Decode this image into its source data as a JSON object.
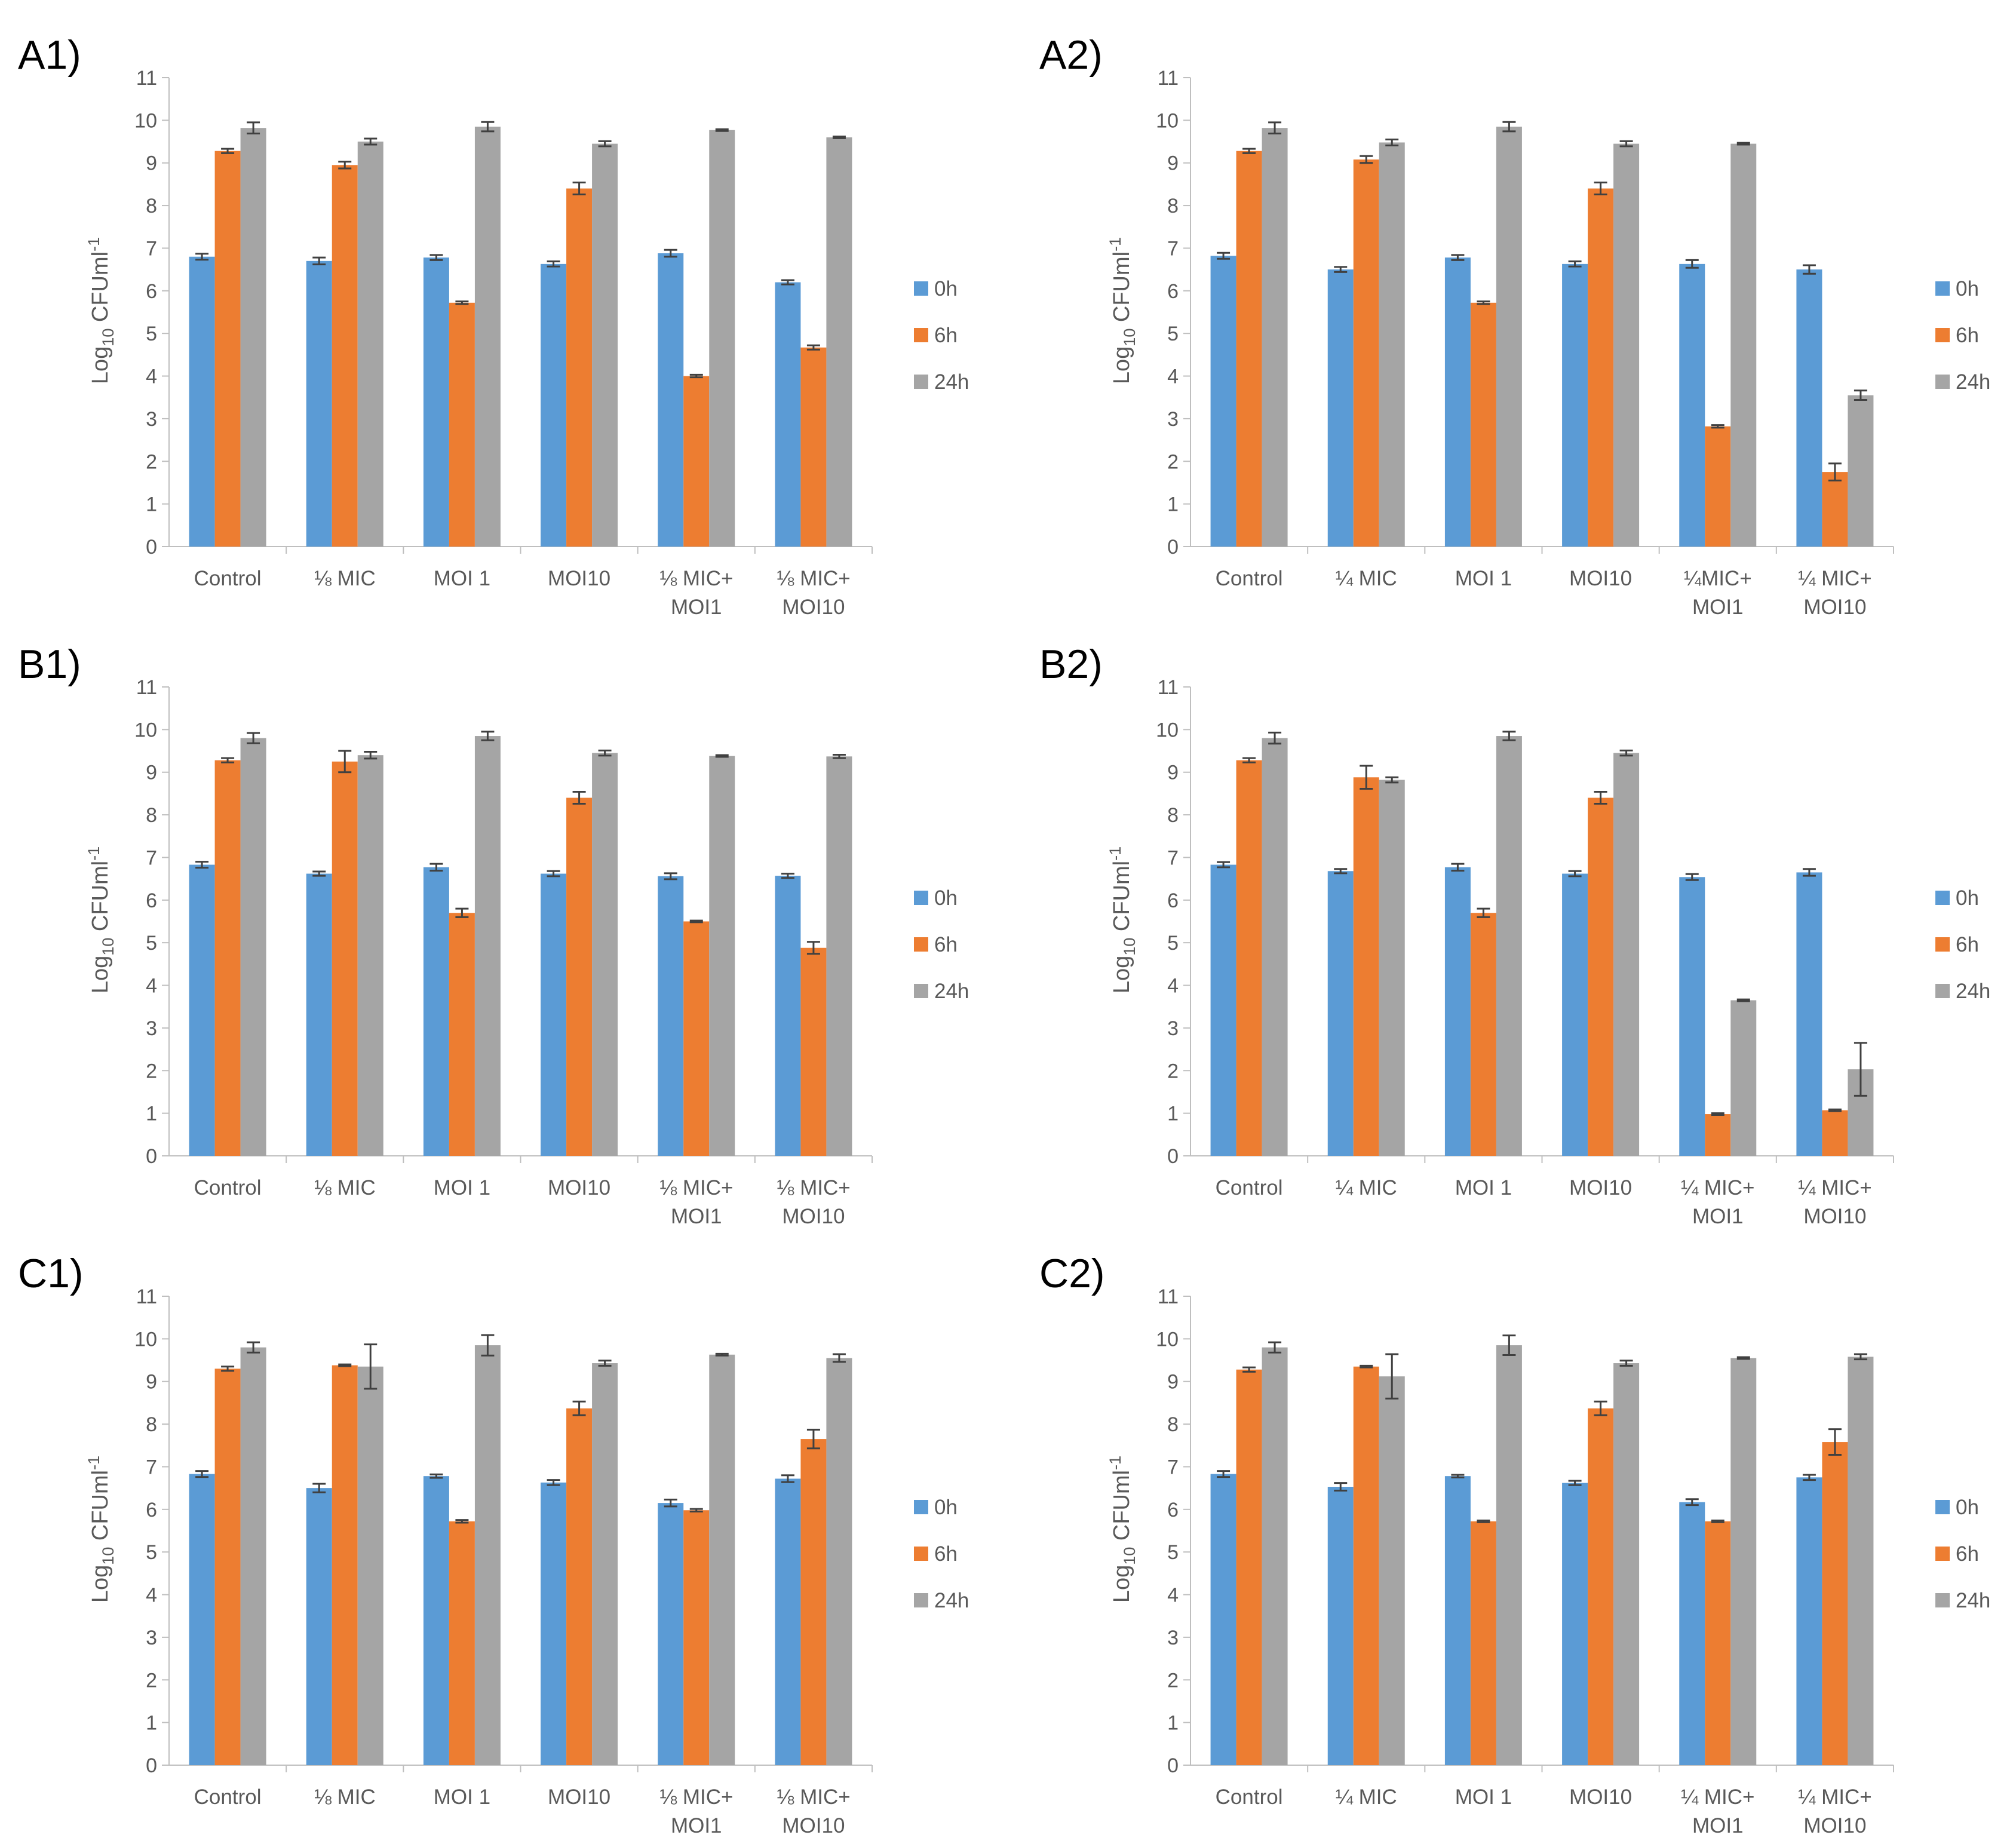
{
  "series_meta": [
    {
      "name": "0h",
      "color": "#5b9bd5"
    },
    {
      "name": "6h",
      "color": "#ed7d31"
    },
    {
      "name": "24h",
      "color": "#a5a5a5"
    }
  ],
  "chart_data": [
    {
      "panel": "A1)",
      "type": "bar",
      "ylabel": "Log10 CFUml-1",
      "ylim": [
        0,
        11
      ],
      "yticks": [
        0,
        1,
        2,
        3,
        4,
        5,
        6,
        7,
        8,
        9,
        10,
        11
      ],
      "legend": "right",
      "categories": [
        [
          "Control"
        ],
        [
          "⅛ MIC"
        ],
        [
          "MOI 1"
        ],
        [
          "MOI10"
        ],
        [
          "⅛ MIC+",
          "MOI1"
        ],
        [
          "⅛ MIC+",
          "MOI10"
        ]
      ],
      "series": [
        {
          "name": "0h",
          "values": [
            6.8,
            6.7,
            6.78,
            6.63,
            6.88,
            6.2
          ],
          "errors": [
            0.07,
            0.08,
            0.06,
            0.06,
            0.08,
            0.05
          ]
        },
        {
          "name": "6h",
          "values": [
            9.28,
            8.95,
            5.72,
            8.4,
            4.0,
            4.67
          ],
          "errors": [
            0.05,
            0.08,
            0.03,
            0.14,
            0.03,
            0.05
          ]
        },
        {
          "name": "24h",
          "values": [
            9.82,
            9.5,
            9.85,
            9.45,
            9.77,
            9.6
          ],
          "errors": [
            0.13,
            0.07,
            0.11,
            0.06,
            0.02,
            0.02
          ]
        }
      ]
    },
    {
      "panel": "A2)",
      "type": "bar",
      "ylabel": "Log10 CFUml-1",
      "ylim": [
        0,
        11
      ],
      "yticks": [
        0,
        1,
        2,
        3,
        4,
        5,
        6,
        7,
        8,
        9,
        10,
        11
      ],
      "legend": "right",
      "categories": [
        [
          "Control"
        ],
        [
          "¼ MIC"
        ],
        [
          "MOI 1"
        ],
        [
          "MOI10"
        ],
        [
          "¼MIC+",
          "MOI1"
        ],
        [
          "¼ MIC+",
          "MOI10"
        ]
      ],
      "series": [
        {
          "name": "0h",
          "values": [
            6.82,
            6.5,
            6.78,
            6.63,
            6.63,
            6.5
          ],
          "errors": [
            0.07,
            0.06,
            0.06,
            0.06,
            0.09,
            0.1
          ]
        },
        {
          "name": "6h",
          "values": [
            9.28,
            9.08,
            5.72,
            8.4,
            2.82,
            1.75
          ],
          "errors": [
            0.05,
            0.08,
            0.03,
            0.14,
            0.03,
            0.2
          ]
        },
        {
          "name": "24h",
          "values": [
            9.82,
            9.48,
            9.85,
            9.45,
            9.45,
            3.55
          ],
          "errors": [
            0.13,
            0.07,
            0.11,
            0.06,
            0.02,
            0.11
          ]
        }
      ]
    },
    {
      "panel": "B1)",
      "type": "bar",
      "ylabel": "Log10 CFUml-1",
      "ylim": [
        0,
        11
      ],
      "yticks": [
        0,
        1,
        2,
        3,
        4,
        5,
        6,
        7,
        8,
        9,
        10,
        11
      ],
      "legend": "right",
      "categories": [
        [
          "Control"
        ],
        [
          "⅛ MIC"
        ],
        [
          "MOI 1"
        ],
        [
          "MOI10"
        ],
        [
          "⅛ MIC+",
          "MOI1"
        ],
        [
          "⅛ MIC+",
          "MOI10"
        ]
      ],
      "series": [
        {
          "name": "0h",
          "values": [
            6.83,
            6.62,
            6.77,
            6.62,
            6.56,
            6.57
          ],
          "errors": [
            0.07,
            0.05,
            0.08,
            0.06,
            0.07,
            0.05
          ]
        },
        {
          "name": "6h",
          "values": [
            9.28,
            9.25,
            5.7,
            8.4,
            5.5,
            4.88
          ],
          "errors": [
            0.05,
            0.25,
            0.1,
            0.14,
            0.02,
            0.14
          ]
        },
        {
          "name": "24h",
          "values": [
            9.8,
            9.4,
            9.85,
            9.45,
            9.38,
            9.37
          ],
          "errors": [
            0.12,
            0.08,
            0.1,
            0.06,
            0.02,
            0.04
          ]
        }
      ]
    },
    {
      "panel": "B2)",
      "type": "bar",
      "ylabel": "Log10 CFUml-1",
      "ylim": [
        0,
        11
      ],
      "yticks": [
        0,
        1,
        2,
        3,
        4,
        5,
        6,
        7,
        8,
        9,
        10,
        11
      ],
      "legend": "right",
      "categories": [
        [
          "Control"
        ],
        [
          "¼ MIC"
        ],
        [
          "MOI 1"
        ],
        [
          "MOI10"
        ],
        [
          "¼ MIC+",
          "MOI1"
        ],
        [
          "¼ MIC+",
          "MOI10"
        ]
      ],
      "series": [
        {
          "name": "0h",
          "values": [
            6.83,
            6.68,
            6.77,
            6.62,
            6.54,
            6.65
          ],
          "errors": [
            0.06,
            0.05,
            0.08,
            0.06,
            0.07,
            0.08
          ]
        },
        {
          "name": "6h",
          "values": [
            9.28,
            8.88,
            5.7,
            8.4,
            0.98,
            1.07
          ],
          "errors": [
            0.05,
            0.27,
            0.1,
            0.14,
            0.02,
            0.02
          ]
        },
        {
          "name": "24h",
          "values": [
            9.8,
            8.82,
            9.85,
            9.45,
            3.65,
            2.03
          ],
          "errors": [
            0.13,
            0.06,
            0.1,
            0.06,
            0.02,
            0.62
          ]
        }
      ]
    },
    {
      "panel": "C1)",
      "type": "bar",
      "ylabel": "Log10 CFUml-1",
      "ylim": [
        0,
        11
      ],
      "yticks": [
        0,
        1,
        2,
        3,
        4,
        5,
        6,
        7,
        8,
        9,
        10,
        11
      ],
      "legend": "right",
      "categories": [
        [
          "Control"
        ],
        [
          "⅛ MIC"
        ],
        [
          "MOI 1"
        ],
        [
          "MOI10"
        ],
        [
          "⅛ MIC+",
          "MOI1"
        ],
        [
          "⅛ MIC+",
          "MOI10"
        ]
      ],
      "series": [
        {
          "name": "0h",
          "values": [
            6.83,
            6.5,
            6.78,
            6.63,
            6.15,
            6.72
          ],
          "errors": [
            0.07,
            0.1,
            0.04,
            0.06,
            0.08,
            0.08
          ]
        },
        {
          "name": "6h",
          "values": [
            9.3,
            9.38,
            5.72,
            8.37,
            5.98,
            7.65
          ],
          "errors": [
            0.05,
            0.02,
            0.03,
            0.16,
            0.03,
            0.22
          ]
        },
        {
          "name": "24h",
          "values": [
            9.8,
            9.35,
            9.85,
            9.43,
            9.63,
            9.55
          ],
          "errors": [
            0.12,
            0.52,
            0.24,
            0.06,
            0.02,
            0.09
          ]
        }
      ]
    },
    {
      "panel": "C2)",
      "type": "bar",
      "ylabel": "Log10 CFUml-1",
      "ylim": [
        0,
        11
      ],
      "yticks": [
        0,
        1,
        2,
        3,
        4,
        5,
        6,
        7,
        8,
        9,
        10,
        11
      ],
      "legend": "right",
      "categories": [
        [
          "Control"
        ],
        [
          "¼ MIC"
        ],
        [
          "MOI 1"
        ],
        [
          "MOI10"
        ],
        [
          "¼ MIC+",
          "MOI1"
        ],
        [
          "¼ MIC+",
          "MOI10"
        ]
      ],
      "series": [
        {
          "name": "0h",
          "values": [
            6.83,
            6.53,
            6.78,
            6.62,
            6.17,
            6.75
          ],
          "errors": [
            0.07,
            0.09,
            0.03,
            0.05,
            0.07,
            0.06
          ]
        },
        {
          "name": "6h",
          "values": [
            9.28,
            9.35,
            5.72,
            8.37,
            5.72,
            7.58
          ],
          "errors": [
            0.05,
            0.02,
            0.02,
            0.16,
            0.02,
            0.3
          ]
        },
        {
          "name": "24h",
          "values": [
            9.8,
            9.12,
            9.85,
            9.43,
            9.55,
            9.58
          ],
          "errors": [
            0.12,
            0.52,
            0.23,
            0.06,
            0.02,
            0.06
          ]
        }
      ]
    }
  ]
}
